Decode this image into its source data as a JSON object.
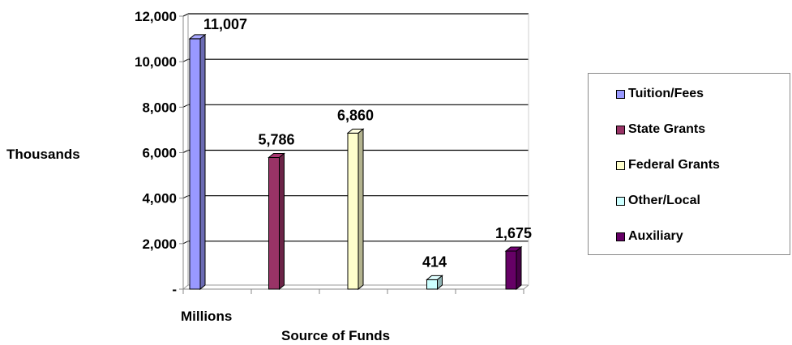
{
  "chart_data": {
    "type": "bar",
    "xlabel": "Source of Funds",
    "category_label": "Millions",
    "ylabel": "Thousands",
    "ylim": [
      0,
      12000
    ],
    "yticks": [
      0,
      2000,
      4000,
      6000,
      8000,
      10000,
      12000
    ],
    "ytick_labels": [
      "-",
      "2,000",
      "4,000",
      "6,000",
      "8,000",
      "10,000",
      "12,000"
    ],
    "grid": true,
    "legend_position": "right",
    "series": [
      {
        "name": "Tuition/Fees",
        "values": [
          11007
        ],
        "label": "11,007",
        "color": "#9999ff"
      },
      {
        "name": "State Grants",
        "values": [
          5786
        ],
        "label": "5,786",
        "color": "#993366"
      },
      {
        "name": "Federal Grants",
        "values": [
          6860
        ],
        "label": "6,860",
        "color": "#ffffcc"
      },
      {
        "name": "Other/Local",
        "values": [
          414
        ],
        "label": "414",
        "color": "#ccffff"
      },
      {
        "name": "Auxiliary",
        "values": [
          1675
        ],
        "label": "1,675",
        "color": "#660066"
      }
    ]
  }
}
